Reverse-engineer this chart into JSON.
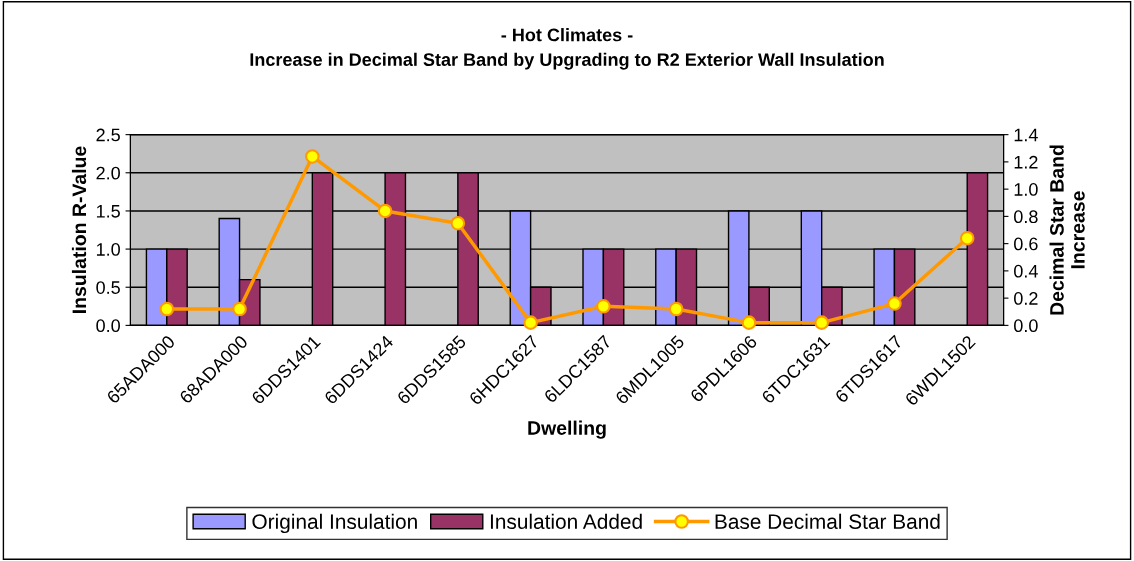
{
  "chart_data": {
    "type": "bar",
    "title": "- Hot Climates -\nIncrease in Decimal Star Band by Upgrading to R2 Exterior Wall Insulation",
    "xlabel": "Dwelling",
    "ylabel": "Insulation R-Value",
    "y2label": "Decimal Star Band\nIncrease",
    "categories": [
      "65ADA000",
      "68ADA000",
      "6DDS1401",
      "6DDS1424",
      "6DDS1585",
      "6HDC1627",
      "6LDC1587",
      "6MDL1005",
      "6PDL1606",
      "6TDC1631",
      "6TDS1617",
      "6WDL1502"
    ],
    "series": [
      {
        "name": "Original Insulation",
        "color": "#9999ff",
        "values": [
          1.0,
          1.4,
          null,
          null,
          null,
          1.5,
          1.0,
          1.0,
          1.5,
          1.5,
          1.0,
          null
        ]
      },
      {
        "name": "Insulation Added",
        "color": "#993366",
        "values": [
          1.0,
          0.6,
          2.0,
          2.0,
          2.0,
          0.5,
          1.0,
          1.0,
          0.5,
          0.5,
          1.0,
          2.0
        ]
      },
      {
        "name": "Base Decimal Star Band",
        "type": "line",
        "axis": "y2",
        "color": "#ff9900",
        "marker": "circle",
        "values": [
          0.12,
          0.12,
          1.24,
          0.84,
          0.75,
          0.02,
          0.14,
          0.12,
          0.02,
          0.02,
          0.16,
          0.64
        ]
      }
    ],
    "ylim": [
      0,
      2.5
    ],
    "yticks": [
      {
        "value": 0,
        "label": "0.0"
      },
      0.5,
      {
        "value": 1,
        "label": "1.0"
      },
      1.5,
      {
        "value": 2,
        "label": "2.0"
      },
      2.5
    ],
    "y2lim": [
      0,
      1.4
    ],
    "y2ticks": [
      {
        "value": 0,
        "label": "0.0"
      },
      0.2,
      0.4,
      0.6,
      0.8,
      {
        "value": 1,
        "label": "1.0"
      },
      1.2,
      1.4
    ],
    "grid": "y",
    "legend": "bottom"
  }
}
